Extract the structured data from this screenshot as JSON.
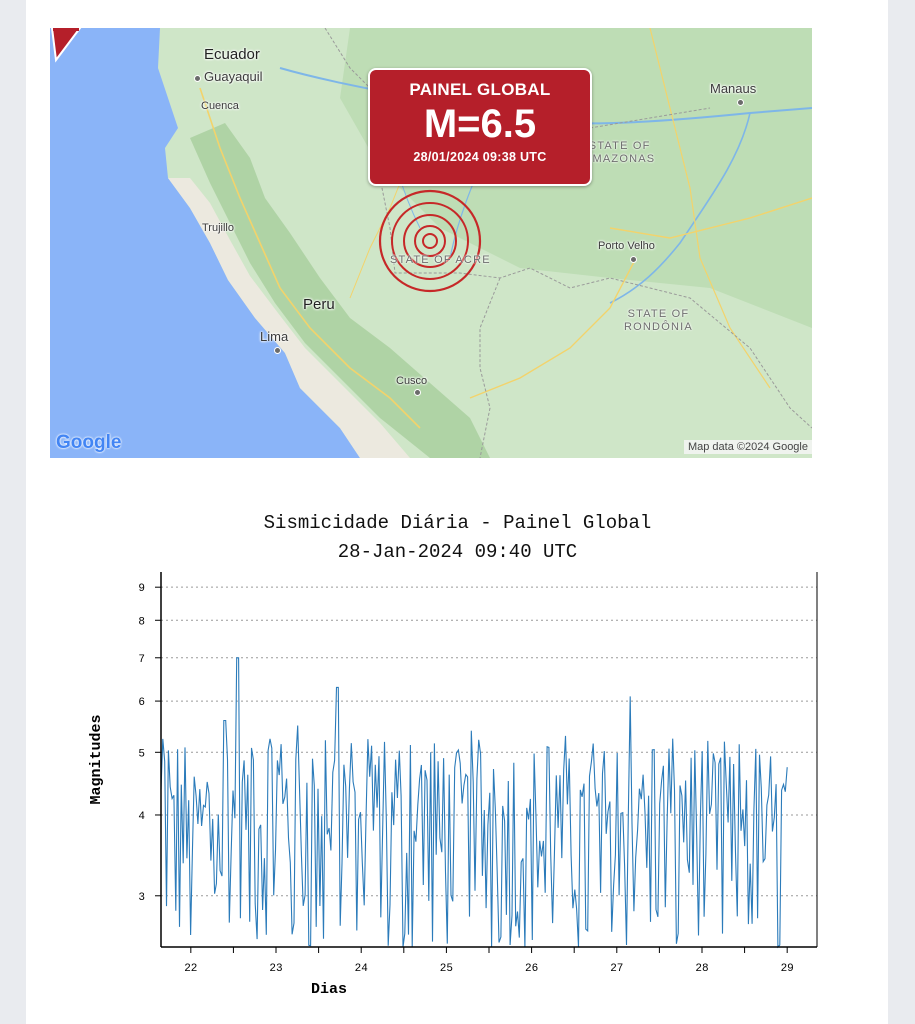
{
  "map": {
    "callout": {
      "title": "PAINEL GLOBAL",
      "magnitude": "M=6.5",
      "datetime": "28/01/2024 09:38 UTC",
      "color": "#b51f2a"
    },
    "labels": {
      "ecuador": "Ecuador",
      "guayaquil": "Guayaquil",
      "cuenca": "Cuenca",
      "trujillo": "Trujillo",
      "peru": "Peru",
      "lima": "Lima",
      "cusco": "Cusco",
      "manaus": "Manaus",
      "porto_velho": "Porto Velho",
      "state_amazonas_1": "STATE OF",
      "state_amazonas_2": "AMAZONAS",
      "state_acre": "STATE OF ACRE",
      "state_rondonia_1": "STATE OF",
      "state_rondonia_2": "RONDÔNIA"
    },
    "google_logo": "Google",
    "attribution": "Map data ©2024 Google",
    "epicenter_icon": "concentric-circles-epicenter"
  },
  "chart_data": {
    "type": "line",
    "title": "Sismicidade Diária - Painel Global",
    "subtitle": "28-Jan-2024 09:40 UTC",
    "xlabel": "Dias",
    "ylabel": "Magnitudes",
    "y_scale": "log",
    "ylim": [
      2.5,
      9.5
    ],
    "yticks": [
      3,
      4,
      5,
      6,
      7,
      8,
      9
    ],
    "xlim": [
      21.65,
      29.35
    ],
    "xticks": [
      22,
      23,
      24,
      25,
      26,
      27,
      28,
      29
    ],
    "series_color": "#2b7bba",
    "series": [
      {
        "peaks": [
          {
            "x": 22.55,
            "y": 7.0
          },
          {
            "x": 23.72,
            "y": 6.3
          },
          {
            "x": 27.15,
            "y": 6.1
          },
          {
            "x": 22.4,
            "y": 5.6
          },
          {
            "x": 23.25,
            "y": 5.5
          },
          {
            "x": 25.3,
            "y": 5.4
          },
          {
            "x": 26.4,
            "y": 5.3
          }
        ],
        "x_start": 21.65,
        "x_end": 29.0,
        "approx_points": 340,
        "typical_range": [
          2.5,
          5.2
        ]
      }
    ]
  }
}
